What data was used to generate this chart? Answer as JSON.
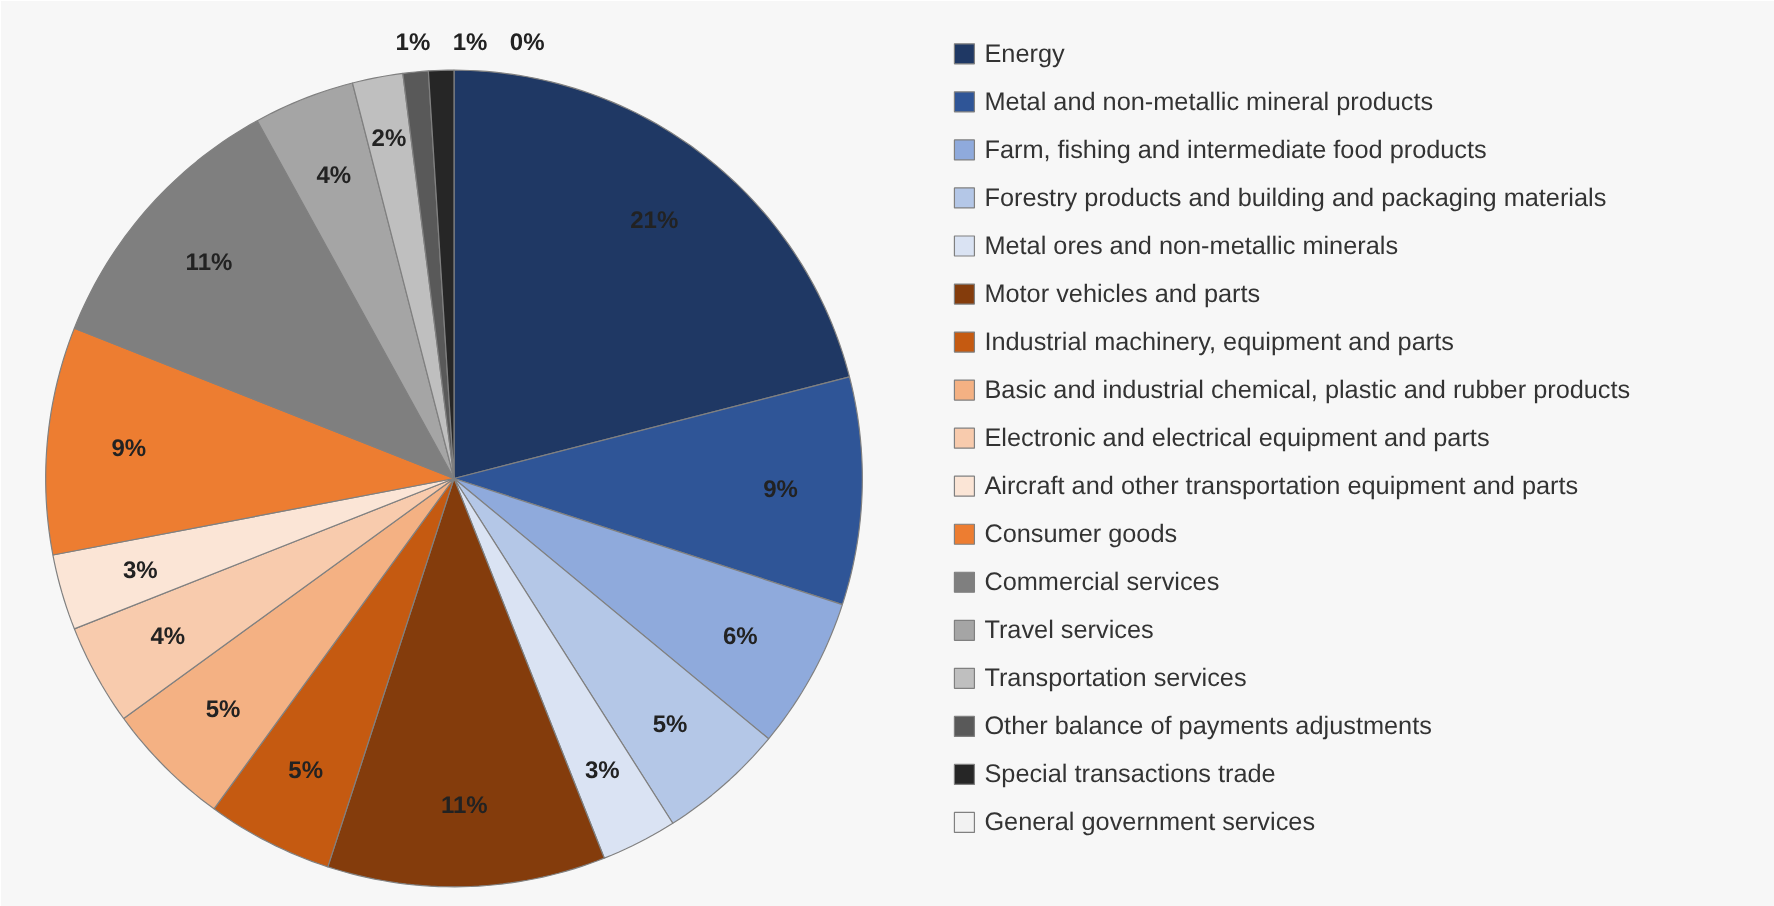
{
  "chart_data": {
    "type": "pie",
    "categories": [
      "Energy",
      "Metal and non-metallic mineral products",
      "Farm, fishing and intermediate food products",
      "Forestry products and building and packaging materials",
      "Metal ores and non-metallic minerals",
      "Motor vehicles and parts",
      "Industrial machinery, equipment and parts",
      "Basic and industrial chemical, plastic and rubber products",
      "Electronic and electrical equipment and parts",
      "Aircraft and other transportation equipment and parts",
      "Consumer goods",
      "Commercial services",
      "Travel services",
      "Transportation services",
      "Other balance of payments adjustments",
      "Special transactions trade",
      "General government services"
    ],
    "values": [
      21,
      9,
      6,
      5,
      3,
      11,
      5,
      5,
      4,
      3,
      9,
      11,
      4,
      2,
      1,
      1,
      0
    ],
    "colors": [
      "#1f3864",
      "#2f5597",
      "#8faadc",
      "#b4c7e7",
      "#dae3f3",
      "#843c0c",
      "#c55a11",
      "#f4b183",
      "#f8cbad",
      "#fbe5d6",
      "#ed7d31",
      "#7f7f7f",
      "#a5a5a5",
      "#bfbfbf",
      "#595959",
      "#262626",
      "#f2f2f2"
    ],
    "data_labels": true,
    "value_labels": [
      "21%",
      "9%",
      "6%",
      "5%",
      "3%",
      "11%",
      "5%",
      "5%",
      "4%",
      "3%",
      "9%",
      "11%",
      "4%",
      "2%",
      "1%",
      "1%",
      "0%"
    ],
    "legend": "right"
  }
}
